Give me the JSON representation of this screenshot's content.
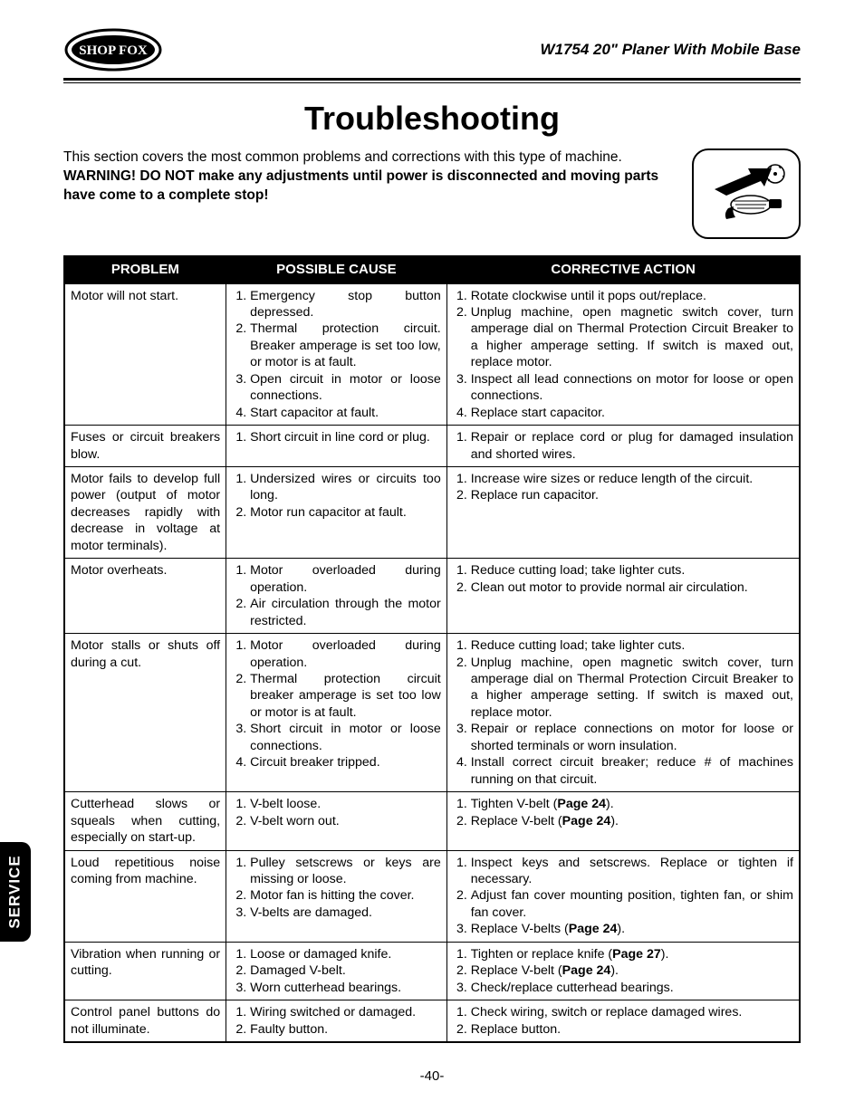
{
  "header": {
    "brand": "SHOP FOX",
    "doc_title": "W1754 20\" Planer With Mobile Base"
  },
  "title": "Troubleshooting",
  "intro": {
    "lead": "This section covers the most common problems and corrections with this type of machine. ",
    "warn": "WARNING! DO NOT make any adjustments until power is disconnected and moving parts have come to a complete stop!"
  },
  "side_tab": "SERVICE",
  "page_number": "-40-",
  "table": {
    "headers": [
      "PROBLEM",
      "POSSIBLE CAUSE",
      "CORRECTIVE ACTION"
    ],
    "rows": [
      {
        "problem": "Motor will not start.",
        "causes": [
          "Emergency stop button depressed.",
          "Thermal protection circuit. Breaker amperage is set too low, or motor is at fault.",
          "Open circuit in motor or loose connections.",
          "Start capacitor at fault."
        ],
        "actions": [
          "Rotate clockwise until it pops out/replace.",
          "Unplug machine, open magnetic switch cover, turn amperage dial on Thermal Protection Circuit Breaker to a higher amperage setting. If switch is maxed out, replace motor.",
          "Inspect all lead connections on motor for loose or open connections.",
          "Replace start capacitor."
        ]
      },
      {
        "problem": "Fuses or circuit breakers blow.",
        "causes": [
          "Short circuit in line cord or plug."
        ],
        "actions": [
          "Repair or replace cord or plug for damaged insulation and shorted wires."
        ]
      },
      {
        "problem": "Motor fails to develop full power (output of motor decreases rapidly with decrease in voltage at motor terminals).",
        "causes": [
          "Undersized wires or circuits too long.",
          "Motor run capacitor at fault."
        ],
        "actions": [
          "Increase wire sizes or reduce length of the circuit.",
          "Replace run capacitor."
        ]
      },
      {
        "problem": "Motor overheats.",
        "causes": [
          "Motor overloaded during operation.",
          "Air circulation through the motor restricted."
        ],
        "actions": [
          "Reduce cutting load; take lighter cuts.",
          "Clean out motor to provide normal air circulation."
        ]
      },
      {
        "problem": "Motor stalls or shuts off during a cut.",
        "causes": [
          "Motor overloaded during operation.",
          "Thermal protection circuit breaker amperage is set too low or motor is at fault.",
          "Short circuit in motor or loose connections.",
          "Circuit breaker tripped."
        ],
        "actions": [
          "Reduce cutting load; take lighter cuts.",
          "Unplug machine, open magnetic switch cover, turn amperage dial on Thermal Protection Circuit Breaker to a higher amperage setting. If switch is maxed out, replace motor.",
          "Repair or replace connections on motor for loose or shorted terminals or worn insulation.",
          "Install correct circuit breaker; reduce # of machines running on that circuit."
        ]
      },
      {
        "problem": "Cutterhead slows or squeals when cutting, especially on start-up.",
        "causes": [
          "V-belt loose.",
          "V-belt worn out."
        ],
        "actions_html": [
          "Tighten V-belt (<span class='bold'>Page 24</span>).",
          "Replace V-belt (<span class='bold'>Page 24</span>)."
        ]
      },
      {
        "problem": "Loud repetitious noise coming from machine.",
        "causes": [
          "Pulley setscrews or keys are missing or loose.",
          "Motor fan is hitting the cover.",
          "V-belts are damaged."
        ],
        "actions_html": [
          "Inspect keys and setscrews. Replace or tighten if necessary.",
          "Adjust fan cover mounting position, tighten fan, or shim fan cover.",
          "Replace V-belts (<span class='bold'>Page 24</span>)."
        ]
      },
      {
        "problem": "Vibration when running or cutting.",
        "causes": [
          "Loose or damaged knife.",
          "Damaged V-belt.",
          "Worn cutterhead bearings."
        ],
        "actions_html": [
          "Tighten or replace knife (<span class='bold'>Page 27</span>).",
          "Replace V-belt (<span class='bold'>Page 24</span>).",
          "Check/replace cutterhead bearings."
        ]
      },
      {
        "problem": "Control panel buttons do not illuminate.",
        "causes": [
          "Wiring switched or damaged.",
          "Faulty button."
        ],
        "actions": [
          "Check wiring, switch or replace damaged wires.",
          "Replace button."
        ]
      }
    ]
  }
}
